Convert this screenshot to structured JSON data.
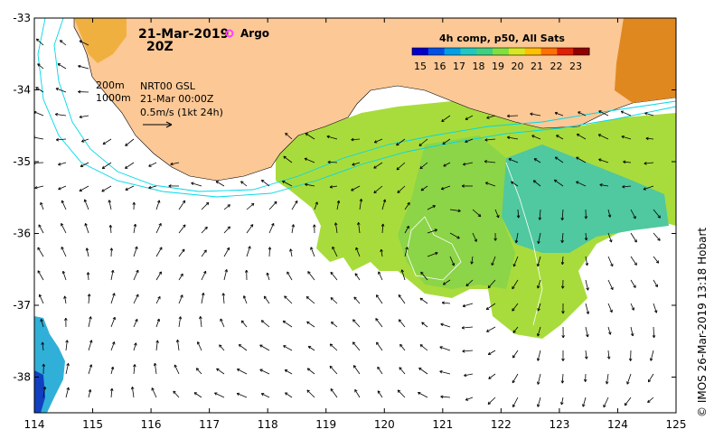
{
  "map": {
    "date_label": "21-Mar-2019",
    "time_label": "20Z",
    "argo_label": "Argo",
    "colorbar_title": "4h comp, p50, All Sats",
    "colorbar_ticks": [
      "15",
      "16",
      "17",
      "18",
      "19",
      "20",
      "21",
      "22",
      "23"
    ],
    "colorbar_colors": [
      "#0000c8",
      "#0050e6",
      "#00a0e6",
      "#20c8c0",
      "#40d080",
      "#80e040",
      "#d8e820",
      "#ffc000",
      "#ff7000",
      "#e02000",
      "#900000"
    ],
    "legend_200m": "200m",
    "legend_1000m": "1000m",
    "model_label": "NRT00 GSL",
    "model_time": "21-Mar 00:00Z",
    "arrow_scale_label": "0.5m/s (1kt 24h)",
    "credit": "© IMOS 26-Mar-2019 13:18 Hobart",
    "x_ticks": [
      "114",
      "115",
      "116",
      "117",
      "118",
      "119",
      "120",
      "121",
      "122",
      "123",
      "124",
      "125"
    ],
    "y_ticks": [
      "-33",
      "-34",
      "-35",
      "-36",
      "-37",
      "-38"
    ],
    "colors": {
      "land": "#fbc896",
      "isobath": "#00d8e8",
      "sst_warm": "#c8e040",
      "sst_cool": "#40c8a0",
      "argo": "#ff40ff"
    }
  }
}
